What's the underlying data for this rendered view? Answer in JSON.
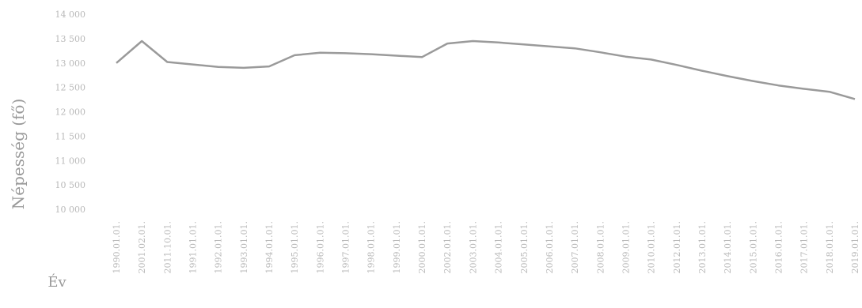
{
  "chart_data": {
    "type": "line",
    "title": "",
    "xlabel": "Év",
    "ylabel": "Népesség (fő)",
    "ylim": [
      10000,
      14000
    ],
    "y_ticks": [
      "14 000",
      "13 500",
      "13 000",
      "12 500",
      "12 000",
      "11 500",
      "11 000",
      "10 500",
      "10 000"
    ],
    "y_tick_values": [
      14000,
      13500,
      13000,
      12500,
      12000,
      11500,
      11000,
      10500,
      10000
    ],
    "grid": false,
    "legend": "none",
    "series_color": "#9a9a9a",
    "categories": [
      "1990.01.01.",
      "2001.02.01.",
      "2011.10.01.",
      "1991.01.01.",
      "1992.01.01.",
      "1993.01.01.",
      "1994.01.01.",
      "1995.01.01.",
      "1996.01.01.",
      "1997.01.01.",
      "1998.01.01.",
      "1999.01.01.",
      "2000.01.01.",
      "2002.01.01.",
      "2003.01.01.",
      "2004.01.01.",
      "2005.01.01.",
      "2006.01.01.",
      "2007.01.01.",
      "2008.01.01.",
      "2009.01.01.",
      "2010.01.01.",
      "2012.01.01.",
      "2013.01.01.",
      "2014.01.01.",
      "2015.01.01.",
      "2016.01.01.",
      "2017.01.01.",
      "2018.01.01.",
      "2019.01.01."
    ],
    "series": [
      {
        "values": [
          13000,
          13450,
          13020,
          12970,
          12920,
          12900,
          12930,
          13160,
          13210,
          13200,
          13180,
          13150,
          13120,
          13400,
          13450,
          13420,
          13380,
          13340,
          13300,
          13220,
          13130,
          13070,
          12960,
          12840,
          12730,
          12630,
          12540,
          12470,
          12410,
          12260
        ]
      }
    ]
  }
}
